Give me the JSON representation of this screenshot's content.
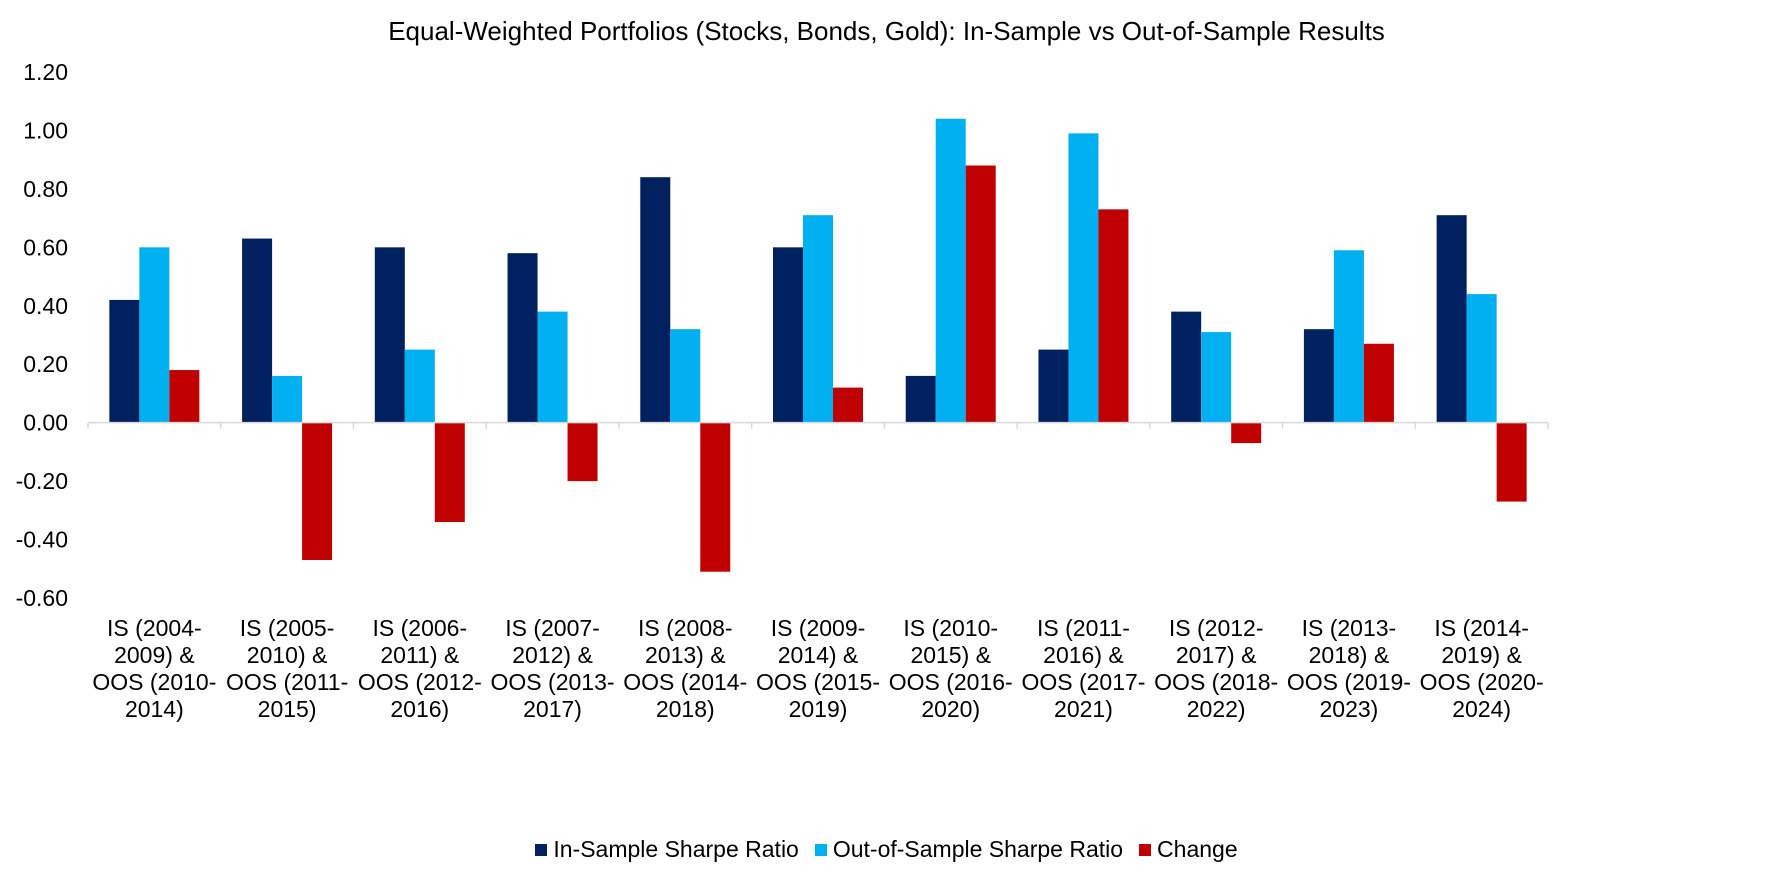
{
  "chart_data": {
    "type": "bar",
    "title": "Equal-Weighted Portfolios (Stocks, Bonds, Gold): In-Sample vs Out-of-Sample Results",
    "xlabel": "",
    "ylabel": "",
    "ylim": [
      -0.6,
      1.2
    ],
    "yticks": [
      "1.20",
      "1.00",
      "0.80",
      "0.60",
      "0.40",
      "0.20",
      "0.00",
      "-0.20",
      "-0.40",
      "-0.60"
    ],
    "grid": false,
    "legend_position": "bottom",
    "categories": [
      [
        "IS (2004-",
        "2009) &",
        "OOS (2010-",
        "2014)"
      ],
      [
        "IS (2005-",
        "2010) &",
        "OOS (2011-",
        "2015)"
      ],
      [
        "IS (2006-",
        "2011) &",
        "OOS (2012-",
        "2016)"
      ],
      [
        "IS (2007-",
        "2012) &",
        "OOS (2013-",
        "2017)"
      ],
      [
        "IS (2008-",
        "2013) &",
        "OOS (2014-",
        "2018)"
      ],
      [
        "IS (2009-",
        "2014) &",
        "OOS (2015-",
        "2019)"
      ],
      [
        "IS (2010-",
        "2015) &",
        "OOS (2016-",
        "2020)"
      ],
      [
        "IS (2011-",
        "2016) &",
        "OOS (2017-",
        "2021)"
      ],
      [
        "IS (2012-",
        "2017) &",
        "OOS (2018-",
        "2022)"
      ],
      [
        "IS (2013-",
        "2018) &",
        "OOS (2019-",
        "2023)"
      ],
      [
        "IS (2014-",
        "2019) &",
        "OOS (2020-",
        "2024)"
      ]
    ],
    "series": [
      {
        "name": "In-Sample Sharpe Ratio",
        "color": "#002060",
        "values": [
          0.42,
          0.63,
          0.6,
          0.58,
          0.84,
          0.6,
          0.16,
          0.25,
          0.38,
          0.32,
          0.71
        ]
      },
      {
        "name": "Out-of-Sample Sharpe Ratio",
        "color": "#00B0F0",
        "values": [
          0.6,
          0.16,
          0.25,
          0.38,
          0.32,
          0.71,
          1.04,
          0.99,
          0.31,
          0.59,
          0.44
        ]
      },
      {
        "name": "Change",
        "color": "#C00000",
        "values": [
          0.18,
          -0.47,
          -0.34,
          -0.2,
          -0.51,
          0.12,
          0.88,
          0.73,
          -0.07,
          0.27,
          -0.27
        ]
      }
    ]
  }
}
